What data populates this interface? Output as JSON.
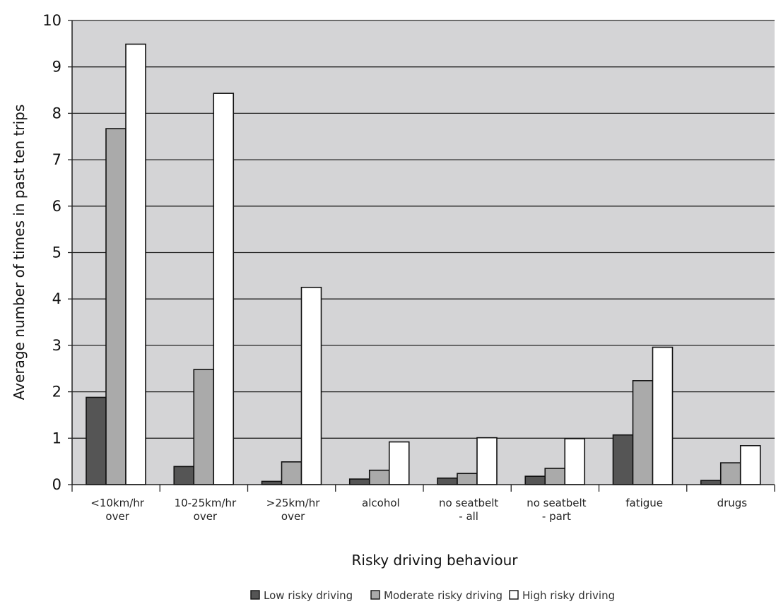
{
  "chart_data": {
    "type": "bar",
    "title": "",
    "xlabel": "Risky driving behaviour",
    "ylabel": "Average number of times in past ten trips",
    "ylim": [
      0,
      10
    ],
    "yticks": [
      "0",
      "1",
      "2",
      "3",
      "4",
      "5",
      "6",
      "7",
      "8",
      "9",
      "10"
    ],
    "categories": [
      [
        "<10km/hr",
        "over"
      ],
      [
        "10-25km/hr",
        "over"
      ],
      [
        ">25km/hr",
        "over"
      ],
      [
        "alcohol"
      ],
      [
        "no seatbelt",
        "- all"
      ],
      [
        "no seatbelt",
        "- part"
      ],
      [
        "fatigue"
      ],
      [
        "drugs"
      ]
    ],
    "series": [
      {
        "name": "Low risky driving",
        "color": "#555555",
        "values": [
          1.88,
          0.39,
          0.07,
          0.12,
          0.14,
          0.18,
          1.07,
          0.09
        ]
      },
      {
        "name": "Moderate risky driving",
        "color": "#aaaaaa",
        "values": [
          7.67,
          2.48,
          0.49,
          0.31,
          0.24,
          0.35,
          2.24,
          0.47
        ]
      },
      {
        "name": "High risky driving",
        "color": "#ffffff",
        "values": [
          9.49,
          8.43,
          4.25,
          0.92,
          1.01,
          0.99,
          2.96,
          0.84
        ]
      }
    ],
    "plot_background": "#d4d4d6",
    "grid": true,
    "legend_position": "bottom"
  }
}
